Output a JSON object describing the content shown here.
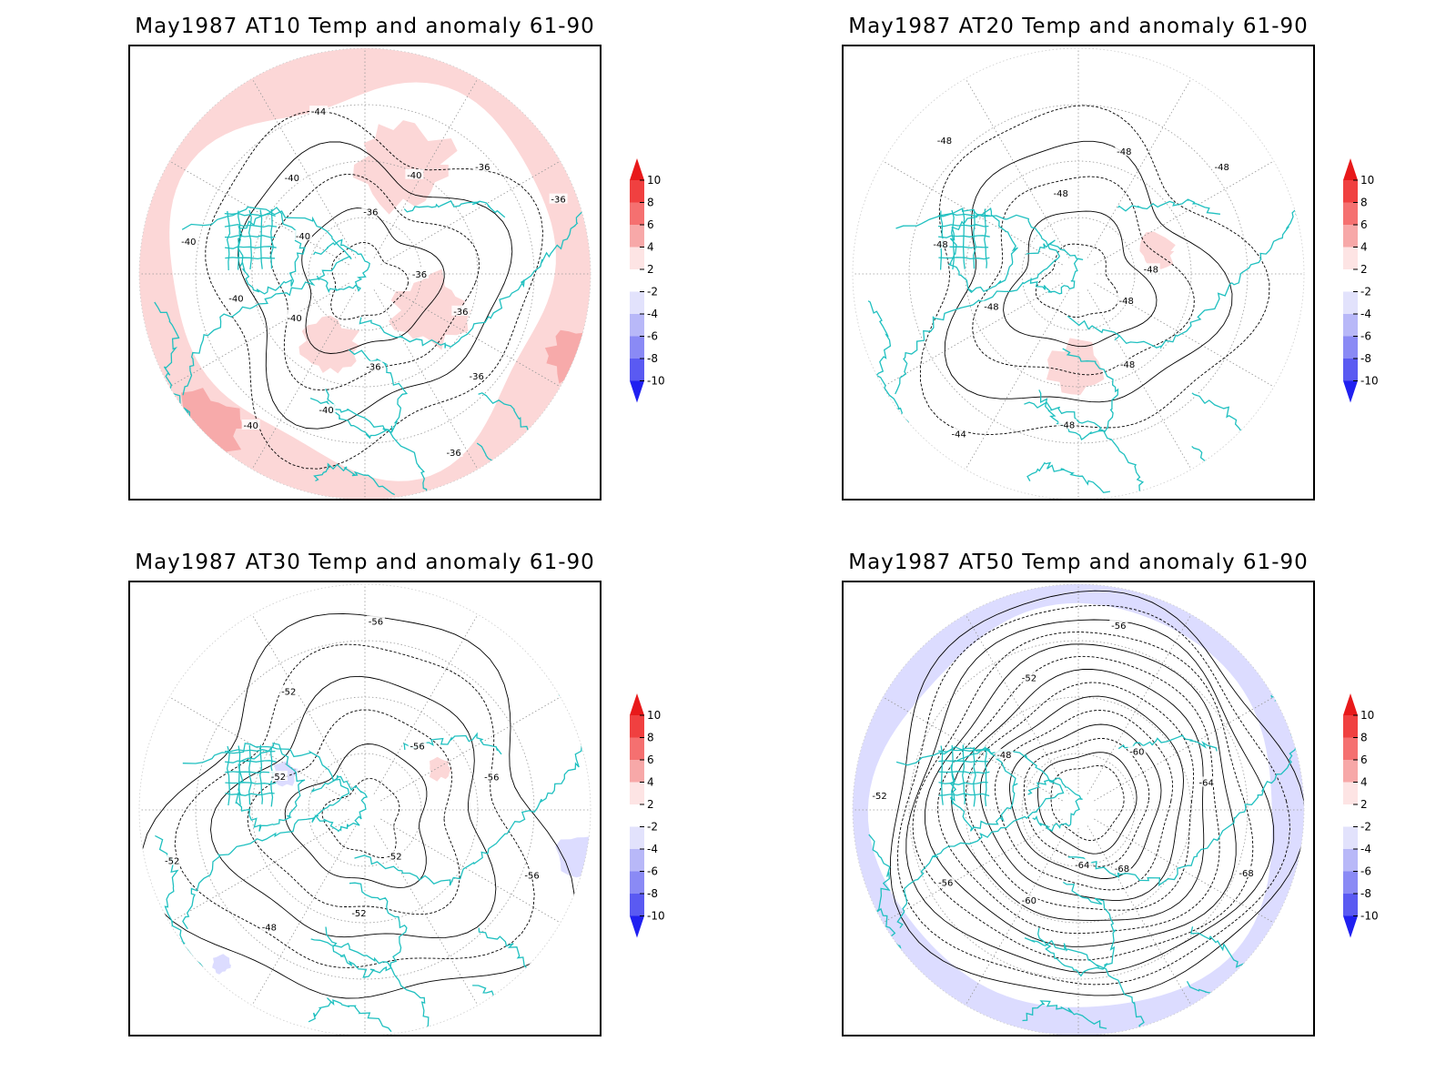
{
  "panels": [
    {
      "id": "at10",
      "title": "May1987 AT10 Temp and anomaly 61-90",
      "contour_labels": [
        "-36",
        "-36",
        "-36",
        "-36",
        "-36",
        "-40",
        "-40",
        "-40",
        "-40",
        "-40",
        "-40",
        "-40",
        "-44",
        "-36",
        "-40",
        "-36",
        "-36"
      ],
      "anomaly_fill": "warm-ring",
      "anomaly_colors": [
        "#fcd7d7",
        "#f7aaaa",
        "#f08080"
      ]
    },
    {
      "id": "at20",
      "title": "May1987 AT20 Temp and anomaly 61-90",
      "contour_labels": [
        "-48",
        "-48",
        "-48",
        "-44",
        "-48",
        "-48",
        "-48",
        "-48",
        "-48",
        "-48",
        "-48"
      ],
      "anomaly_fill": "sparse-warm",
      "anomaly_colors": [
        "#fcd7d7"
      ]
    },
    {
      "id": "at30",
      "title": "May1987 AT30 Temp and anomaly 61-90",
      "contour_labels": [
        "-52",
        "-52",
        "-48",
        "-52",
        "-52",
        "-52",
        "-56",
        "-56",
        "-56",
        "-56"
      ],
      "anomaly_fill": "sparse-mixed",
      "anomaly_colors": [
        "#dcdcff",
        "#fcd7d7"
      ]
    },
    {
      "id": "at50",
      "title": "May1987 AT50 Temp and anomaly 61-90",
      "contour_labels": [
        "-64",
        "-60",
        "-56",
        "-52",
        "-48",
        "-52",
        "-56",
        "-60",
        "-64",
        "-68",
        "-68"
      ],
      "anomaly_fill": "cool-ring",
      "anomaly_colors": [
        "#dcdcff"
      ]
    }
  ],
  "colorbar": {
    "labels": [
      "10",
      "8",
      "6",
      "4",
      "2",
      "-2",
      "-4",
      "-6",
      "-8",
      "-10"
    ],
    "colors": [
      "#e8191a",
      "#f04040",
      "#f57070",
      "#f7a8a8",
      "#fde4e4",
      "#ffffff",
      "#e2e2fc",
      "#b8b8f8",
      "#8a8af5",
      "#5a5af2",
      "#2020f0"
    ]
  },
  "colors": {
    "coastline": "#20c0c0",
    "contour": "#000000",
    "grid": "#999999"
  }
}
